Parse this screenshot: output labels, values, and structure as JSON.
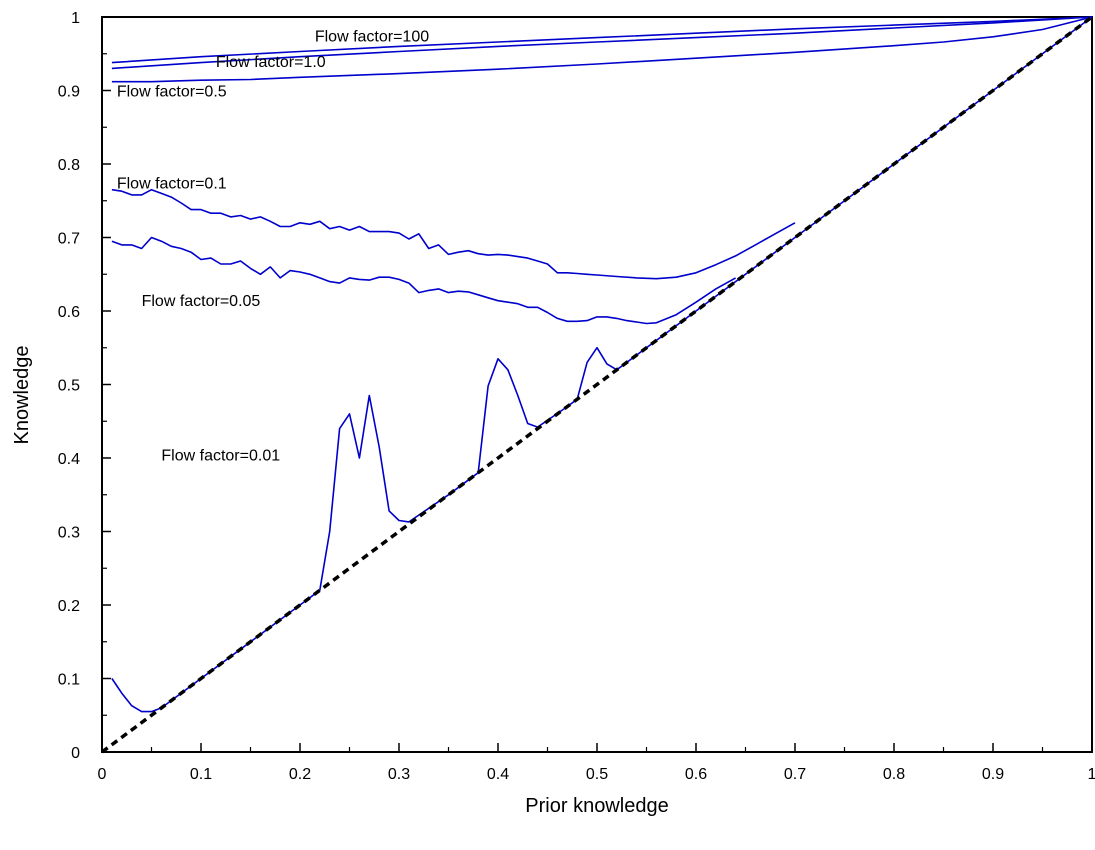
{
  "chart_data": {
    "type": "line",
    "xlabel": "Prior knowledge",
    "ylabel": "Knowledge",
    "xlim": [
      0,
      1
    ],
    "ylim": [
      0,
      1
    ],
    "xticks": [
      "0",
      "0.1",
      "0.2",
      "0.3",
      "0.4",
      "0.5",
      "0.6",
      "0.7",
      "0.8",
      "0.9",
      "1"
    ],
    "yticks": [
      "0",
      "0.1",
      "0.2",
      "0.3",
      "0.4",
      "0.5",
      "0.6",
      "0.7",
      "0.8",
      "0.9",
      "1"
    ],
    "grid": false,
    "colors": {
      "series": "#0000cc",
      "reference": "#000000"
    },
    "reference_line": {
      "style": "dashed",
      "x": [
        0,
        1
      ],
      "y": [
        0,
        1
      ]
    },
    "series": [
      {
        "label": "Flow factor=100",
        "x": [
          0.01,
          0.1,
          0.2,
          0.3,
          0.4,
          0.5,
          0.6,
          0.7,
          0.8,
          0.9,
          1.0
        ],
        "y": [
          0.938,
          0.946,
          0.953,
          0.96,
          0.966,
          0.972,
          0.978,
          0.984,
          0.989,
          0.994,
          1.0
        ]
      },
      {
        "label": "Flow factor=1.0",
        "x": [
          0.01,
          0.1,
          0.2,
          0.3,
          0.4,
          0.5,
          0.6,
          0.7,
          0.8,
          0.9,
          1.0
        ],
        "y": [
          0.93,
          0.938,
          0.946,
          0.953,
          0.96,
          0.966,
          0.972,
          0.978,
          0.985,
          0.992,
          1.0
        ]
      },
      {
        "label": "Flow factor=0.5",
        "x": [
          0.01,
          0.05,
          0.1,
          0.15,
          0.2,
          0.3,
          0.4,
          0.5,
          0.6,
          0.7,
          0.8,
          0.85,
          0.9,
          0.95,
          1.0
        ],
        "y": [
          0.912,
          0.912,
          0.914,
          0.915,
          0.918,
          0.923,
          0.929,
          0.936,
          0.944,
          0.952,
          0.961,
          0.966,
          0.973,
          0.983,
          1.0
        ]
      },
      {
        "label": "Flow factor=0.1",
        "x": [
          0.01,
          0.02,
          0.03,
          0.04,
          0.05,
          0.06,
          0.07,
          0.08,
          0.09,
          0.1,
          0.11,
          0.12,
          0.13,
          0.14,
          0.15,
          0.16,
          0.17,
          0.18,
          0.19,
          0.2,
          0.21,
          0.22,
          0.23,
          0.24,
          0.25,
          0.26,
          0.27,
          0.28,
          0.29,
          0.3,
          0.31,
          0.32,
          0.33,
          0.34,
          0.35,
          0.36,
          0.37,
          0.38,
          0.39,
          0.4,
          0.41,
          0.42,
          0.43,
          0.44,
          0.45,
          0.46,
          0.47,
          0.48,
          0.49,
          0.5,
          0.52,
          0.54,
          0.56,
          0.58,
          0.6,
          0.62,
          0.64,
          0.66,
          0.68,
          0.7
        ],
        "y": [
          0.765,
          0.763,
          0.758,
          0.758,
          0.765,
          0.76,
          0.755,
          0.747,
          0.738,
          0.738,
          0.733,
          0.733,
          0.728,
          0.73,
          0.725,
          0.728,
          0.722,
          0.715,
          0.715,
          0.72,
          0.718,
          0.722,
          0.712,
          0.715,
          0.71,
          0.715,
          0.708,
          0.708,
          0.708,
          0.706,
          0.698,
          0.705,
          0.685,
          0.69,
          0.677,
          0.68,
          0.682,
          0.678,
          0.676,
          0.677,
          0.676,
          0.674,
          0.672,
          0.668,
          0.664,
          0.652,
          0.652,
          0.651,
          0.65,
          0.649,
          0.647,
          0.645,
          0.644,
          0.646,
          0.652,
          0.663,
          0.675,
          0.69,
          0.705,
          0.72
        ]
      },
      {
        "label": "Flow factor=0.05",
        "x": [
          0.01,
          0.02,
          0.03,
          0.04,
          0.05,
          0.06,
          0.07,
          0.08,
          0.09,
          0.1,
          0.11,
          0.12,
          0.13,
          0.14,
          0.15,
          0.16,
          0.17,
          0.18,
          0.19,
          0.2,
          0.21,
          0.22,
          0.23,
          0.24,
          0.25,
          0.26,
          0.27,
          0.28,
          0.29,
          0.3,
          0.31,
          0.32,
          0.33,
          0.34,
          0.35,
          0.36,
          0.37,
          0.38,
          0.39,
          0.4,
          0.41,
          0.42,
          0.43,
          0.44,
          0.45,
          0.46,
          0.47,
          0.48,
          0.49,
          0.5,
          0.51,
          0.52,
          0.53,
          0.54,
          0.55,
          0.56,
          0.58,
          0.6,
          0.62,
          0.64
        ],
        "y": [
          0.695,
          0.69,
          0.69,
          0.685,
          0.7,
          0.695,
          0.688,
          0.685,
          0.68,
          0.67,
          0.672,
          0.664,
          0.664,
          0.668,
          0.658,
          0.65,
          0.66,
          0.645,
          0.655,
          0.653,
          0.65,
          0.645,
          0.64,
          0.638,
          0.645,
          0.643,
          0.642,
          0.646,
          0.646,
          0.643,
          0.638,
          0.625,
          0.628,
          0.63,
          0.625,
          0.627,
          0.626,
          0.622,
          0.618,
          0.614,
          0.612,
          0.61,
          0.605,
          0.605,
          0.598,
          0.59,
          0.586,
          0.586,
          0.587,
          0.592,
          0.592,
          0.59,
          0.587,
          0.585,
          0.583,
          0.584,
          0.595,
          0.612,
          0.63,
          0.645
        ]
      },
      {
        "label": "Flow factor=0.01",
        "x": [
          0.01,
          0.02,
          0.03,
          0.04,
          0.05,
          0.06,
          0.1,
          0.15,
          0.2,
          0.22,
          0.23,
          0.24,
          0.25,
          0.26,
          0.27,
          0.28,
          0.29,
          0.3,
          0.31,
          0.35,
          0.38,
          0.39,
          0.4,
          0.41,
          0.42,
          0.43,
          0.44,
          0.47,
          0.48,
          0.49,
          0.5,
          0.51,
          0.52,
          0.6,
          0.7,
          0.8,
          0.9,
          1.0
        ],
        "y": [
          0.1,
          0.08,
          0.063,
          0.055,
          0.055,
          0.06,
          0.1,
          0.15,
          0.2,
          0.22,
          0.3,
          0.44,
          0.46,
          0.4,
          0.485,
          0.415,
          0.328,
          0.315,
          0.313,
          0.35,
          0.38,
          0.498,
          0.535,
          0.52,
          0.485,
          0.447,
          0.442,
          0.47,
          0.48,
          0.53,
          0.55,
          0.528,
          0.52,
          0.6,
          0.7,
          0.8,
          0.9,
          1.0
        ]
      }
    ],
    "labels": [
      {
        "text": "Flow factor=100",
        "x": 0.215,
        "y": 0.975
      },
      {
        "text": "Flow factor=1.0",
        "x": 0.115,
        "y": 0.94
      },
      {
        "text": "Flow factor=0.5",
        "x": 0.015,
        "y": 0.9
      },
      {
        "text": "Flow factor=0.1",
        "x": 0.015,
        "y": 0.775
      },
      {
        "text": "Flow factor=0.05",
        "x": 0.04,
        "y": 0.615
      },
      {
        "text": "Flow factor=0.01",
        "x": 0.06,
        "y": 0.405
      }
    ]
  }
}
